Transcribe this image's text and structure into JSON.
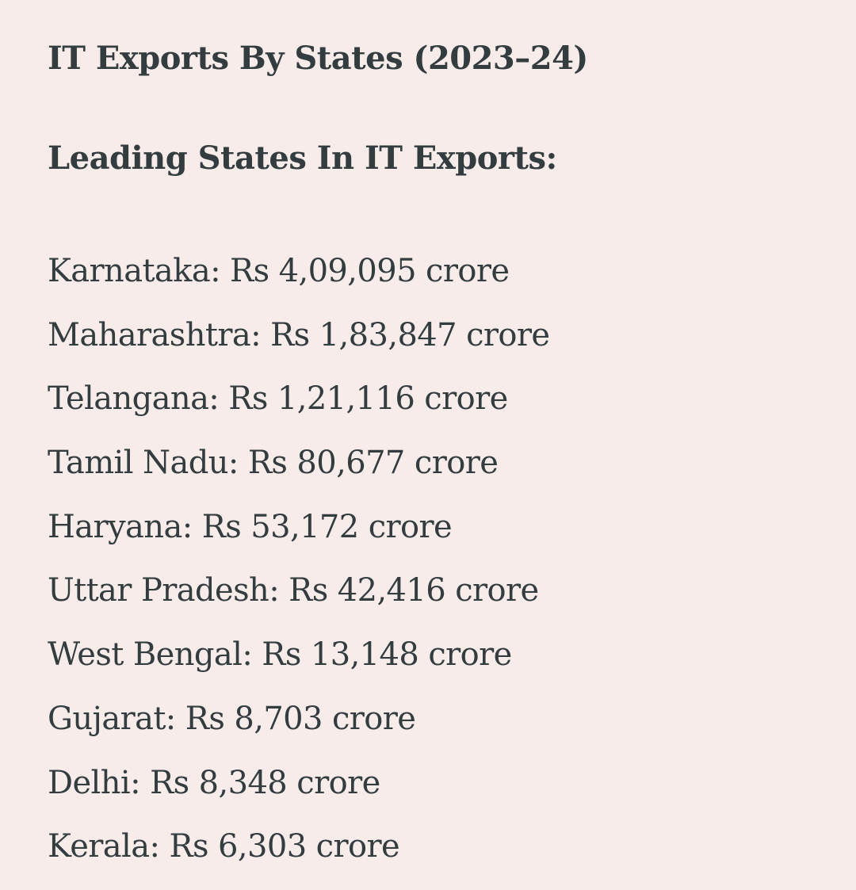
{
  "heading": "IT Exports By States (2023–24)",
  "subheading": "Leading States In IT Exports:",
  "states": [
    "Karnataka: Rs 4,09,095 crore",
    "Maharashtra: Rs 1,83,847 crore",
    "Telangana: Rs 1,21,116 crore",
    "Tamil Nadu: Rs 80,677 crore",
    "Haryana: Rs 53,172 crore",
    "Uttar Pradesh: Rs 42,416 crore",
    "West Bengal: Rs 13,148 crore",
    "Gujarat: Rs 8,703 crore",
    "Delhi: Rs 8,348 crore",
    "Kerala: Rs 6,303 crore"
  ],
  "colors": {
    "background": "#f7ecea",
    "text": "#333d3f"
  }
}
